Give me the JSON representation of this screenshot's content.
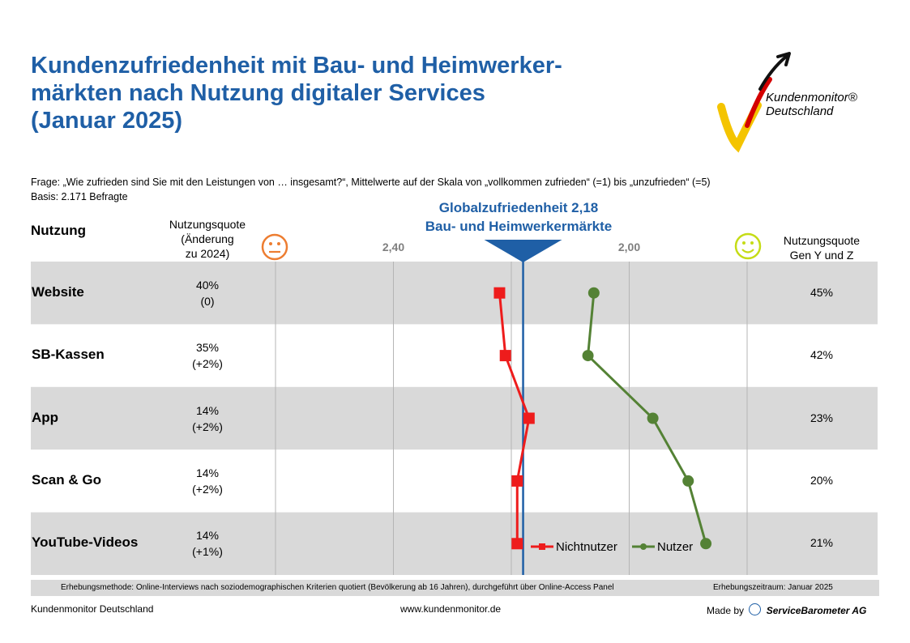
{
  "title": "Kundenzufriedenheit mit Bau- und Heimwerker-\nmärkten nach Nutzung digitaler Services\n(Januar 2025)",
  "title_lines": [
    "Kundenzufriedenheit mit Bau- und Heimwerker-",
    "märkten nach Nutzung digitaler Services",
    "(Januar 2025)"
  ],
  "question": "Frage: „Wie zufrieden sind Sie mit den Leistungen von … insgesamt?“, Mittelwerte auf der Skala von „vollkommen zufrieden“ (=1) bis „unzufrieden“ (=5)",
  "basis": "Basis: 2.171 Befragte",
  "headers": {
    "nutzung": "Nutzung",
    "quota": [
      "Nutzungsquote",
      "(Änderung",
      "zu 2024)"
    ],
    "genyz": [
      "Nutzungsquote",
      "Gen Y und Z"
    ]
  },
  "global": {
    "line1": "Globalzufriedenheit 2,18",
    "line2": "Bau- und Heimwerkermärkte"
  },
  "logo": {
    "line1": "Kundenmonitor®",
    "line2": "Deutschland"
  },
  "colors": {
    "title": "#1f5fa6",
    "nichtnutzer": "#ee1c1c",
    "nutzer": "#548235",
    "band": "#d9d9d9",
    "global_line": "#1f5fa6",
    "sad_face": "#ed7d31",
    "happy_face": "#c5dc16"
  },
  "icons": {
    "left": "neutral-face-icon",
    "right": "smiley-face-icon"
  },
  "rows": [
    {
      "label": "Website",
      "quota": "40%",
      "change": "(0)",
      "genyz": "45%"
    },
    {
      "label": "SB-Kassen",
      "quota": "35%",
      "change": "(+2%)",
      "genyz": "42%"
    },
    {
      "label": "App",
      "quota": "14%",
      "change": "(+2%)",
      "genyz": "23%"
    },
    {
      "label": "Scan & Go",
      "quota": "14%",
      "change": "(+2%)",
      "genyz": "20%"
    },
    {
      "label": "YouTube-Videos",
      "quota": "14%",
      "change": "(+1%)",
      "genyz": "21%"
    }
  ],
  "chart_data": {
    "type": "line",
    "x_axis_reversed": true,
    "xlim": [
      2.6,
      1.8
    ],
    "x_ticks": [
      {
        "value": 2.4,
        "label": "2,40"
      },
      {
        "value": 2.0,
        "label": "2,00"
      }
    ],
    "x_gridlines": [
      2.6,
      2.4,
      2.2,
      2.0,
      1.8
    ],
    "reference": {
      "value": 2.18,
      "label": "Globalzufriedenheit 2,18"
    },
    "categories": [
      "Website",
      "SB-Kassen",
      "App",
      "Scan & Go",
      "YouTube-Videos"
    ],
    "series": [
      {
        "name": "Nichtnutzer",
        "marker": "square",
        "values": [
          2.22,
          2.21,
          2.17,
          2.19,
          2.19
        ]
      },
      {
        "name": "Nutzer",
        "marker": "circle",
        "values": [
          2.06,
          2.07,
          1.96,
          1.9,
          1.87
        ]
      }
    ],
    "legend": "bottom-right"
  },
  "footer": {
    "method": "Erhebungsmethode:  Online-Interviews  nach soziodemographischen  Kriterien quotiert (Bevölkerung ab 16 Jahren), durchgeführt über Online-Access Panel",
    "period": "Erhebungszeitraum:  Januar 2025",
    "left": "Kundenmonitor Deutschland",
    "mid": "www.kundenmonitor.de",
    "made_by": "Made by",
    "company": "ServiceBarometer AG"
  }
}
